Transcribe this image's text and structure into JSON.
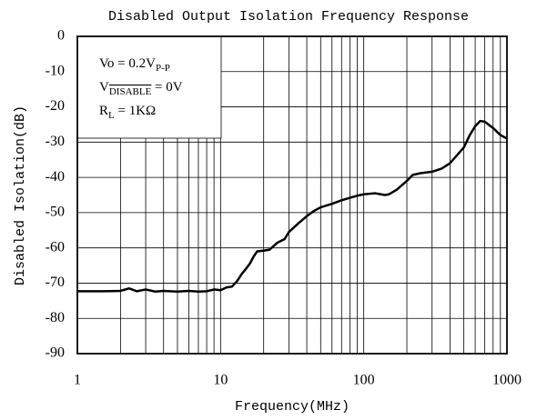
{
  "chart_data": {
    "type": "line",
    "title": "Disabled Output Isolation Frequency Response",
    "xlabel": "Frequency(MHz)",
    "ylabel": "Disabled Isolation(dB)",
    "xscale": "log",
    "xlim": [
      1,
      1000
    ],
    "xticks": [
      1,
      10,
      100,
      1000
    ],
    "ylim": [
      -90,
      0
    ],
    "yticks": [
      0,
      -10,
      -20,
      -30,
      -40,
      -50,
      -60,
      -70,
      -80,
      -90
    ],
    "grid": true,
    "annotations": [
      [
        "Vo = 0.2V",
        "P-P",
        ""
      ],
      [
        "V",
        "DISABLE",
        " = 0V"
      ],
      [
        "R",
        "L",
        " = 1KΩ"
      ]
    ],
    "series": [
      {
        "color": "#000000",
        "x": [
          1,
          1.5,
          2,
          2.3,
          2.6,
          3,
          3.5,
          4,
          5,
          6,
          7,
          8,
          9,
          10,
          11,
          12,
          13,
          14,
          15,
          16,
          17,
          18,
          20,
          22,
          25,
          28,
          30,
          35,
          40,
          45,
          50,
          60,
          70,
          80,
          90,
          100,
          120,
          140,
          150,
          170,
          200,
          220,
          250,
          300,
          350,
          400,
          500,
          550,
          600,
          650,
          700,
          800,
          900,
          1000
        ],
        "values": [
          -72.3,
          -72.3,
          -72.2,
          -71.5,
          -72.3,
          -71.8,
          -72.4,
          -72.2,
          -72.4,
          -72.2,
          -72.4,
          -72.3,
          -71.8,
          -72,
          -71.2,
          -71,
          -69.5,
          -67.5,
          -66,
          -64.5,
          -62.5,
          -61,
          -60.8,
          -60.5,
          -58.5,
          -57.5,
          -55.5,
          -53,
          -51,
          -49.5,
          -48.5,
          -47.5,
          -46.5,
          -45.8,
          -45.2,
          -44.8,
          -44.5,
          -45,
          -44.8,
          -43.5,
          -41,
          -39.3,
          -38.8,
          -38.4,
          -37.5,
          -36,
          -31.5,
          -28,
          -25.5,
          -24,
          -24.2,
          -26,
          -28,
          -29
        ]
      }
    ]
  }
}
